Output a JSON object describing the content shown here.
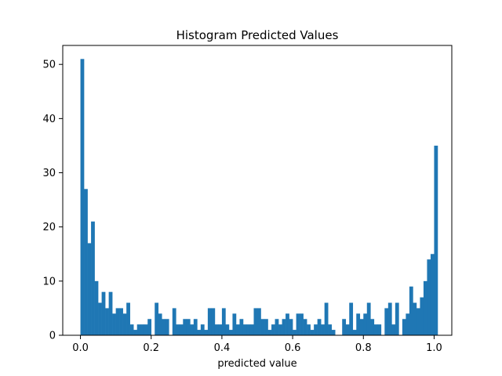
{
  "chart_data": {
    "type": "bar",
    "title": "Histogram Predicted Values",
    "xlabel": "predicted value",
    "ylabel": "",
    "xlim": [
      -0.05,
      1.05
    ],
    "ylim": [
      0,
      53.5
    ],
    "xticks": [
      0.0,
      0.2,
      0.4,
      0.6,
      0.8,
      1.0
    ],
    "xtick_labels": [
      "0.0",
      "0.2",
      "0.4",
      "0.6",
      "0.8",
      "1.0"
    ],
    "yticks": [
      0,
      10,
      20,
      30,
      40,
      50
    ],
    "ytick_labels": [
      "0",
      "10",
      "20",
      "30",
      "40",
      "50"
    ],
    "grid": false,
    "bar_color": "#1f77b4",
    "bin_start": 0.0,
    "bin_width": 0.01,
    "counts": [
      51,
      27,
      17,
      21,
      10,
      6,
      8,
      5,
      8,
      4,
      5,
      5,
      4,
      6,
      2,
      1,
      2,
      2,
      2,
      3,
      0,
      6,
      4,
      3,
      3,
      0,
      5,
      2,
      2,
      3,
      3,
      2,
      3,
      1,
      2,
      1,
      5,
      5,
      2,
      2,
      5,
      2,
      1,
      4,
      2,
      3,
      2,
      2,
      2,
      5,
      5,
      3,
      3,
      1,
      2,
      3,
      2,
      3,
      4,
      3,
      1,
      4,
      4,
      3,
      2,
      1,
      2,
      3,
      2,
      6,
      2,
      1,
      0,
      0,
      3,
      2,
      6,
      1,
      4,
      3,
      4,
      6,
      3,
      2,
      2,
      0,
      5,
      6,
      2,
      6,
      0,
      3,
      4,
      9,
      6,
      5,
      7,
      10,
      14,
      15,
      35
    ]
  }
}
